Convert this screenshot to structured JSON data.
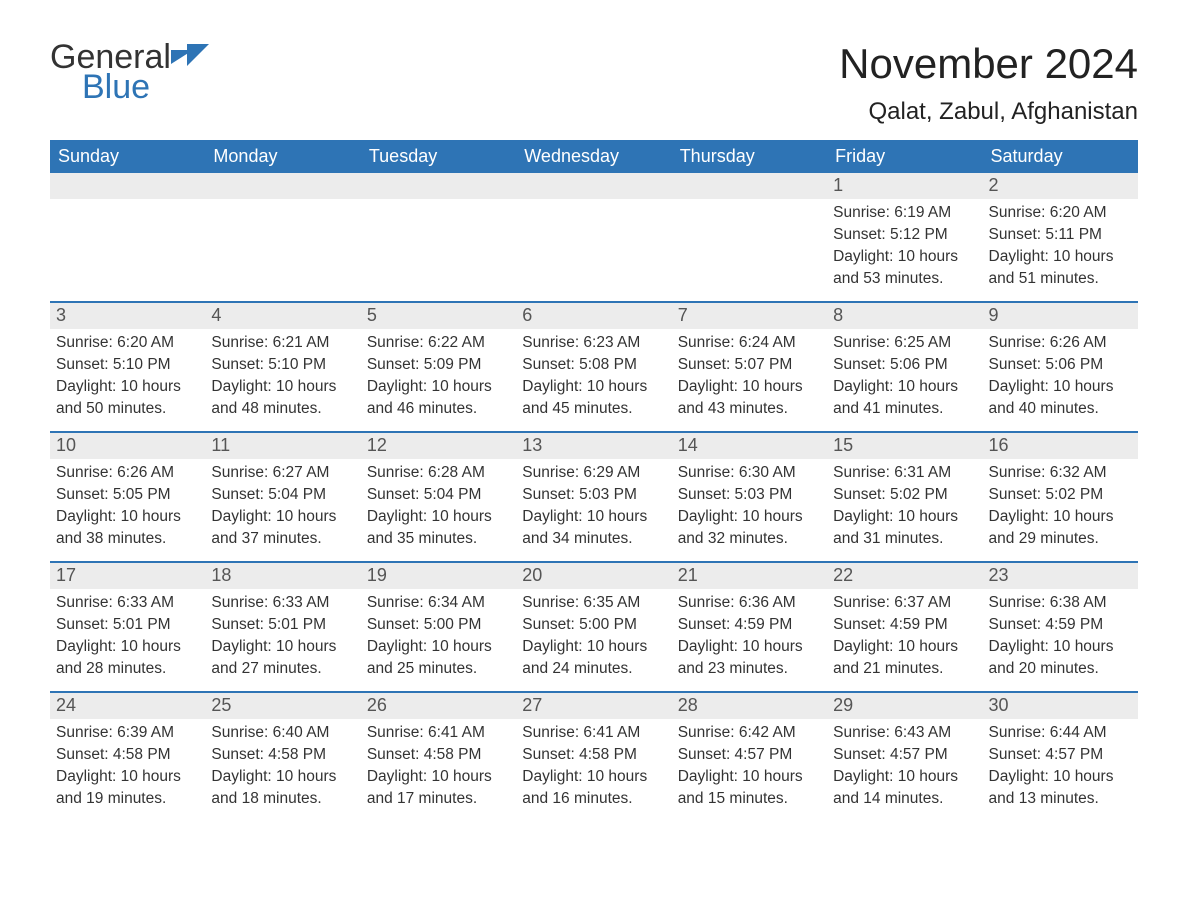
{
  "logo": {
    "line1": "General",
    "line2": "Blue"
  },
  "header": {
    "month_title": "November 2024",
    "location": "Qalat, Zabul, Afghanistan"
  },
  "styling": {
    "header_bg": "#2e74b5",
    "header_text": "#ffffff",
    "day_number_bg": "#ececec",
    "day_number_color": "#555555",
    "border_color": "#2e74b5",
    "body_text_color": "#333333",
    "background_color": "#ffffff",
    "logo_blue": "#2e74b5",
    "month_title_fontsize": 42,
    "location_fontsize": 24,
    "weekday_fontsize": 18,
    "day_number_fontsize": 18,
    "day_content_fontsize": 15.5
  },
  "weekdays": [
    "Sunday",
    "Monday",
    "Tuesday",
    "Wednesday",
    "Thursday",
    "Friday",
    "Saturday"
  ],
  "weeks": [
    [
      {
        "day": "",
        "sunrise": "",
        "sunset": "",
        "daylight1": "",
        "daylight2": ""
      },
      {
        "day": "",
        "sunrise": "",
        "sunset": "",
        "daylight1": "",
        "daylight2": ""
      },
      {
        "day": "",
        "sunrise": "",
        "sunset": "",
        "daylight1": "",
        "daylight2": ""
      },
      {
        "day": "",
        "sunrise": "",
        "sunset": "",
        "daylight1": "",
        "daylight2": ""
      },
      {
        "day": "",
        "sunrise": "",
        "sunset": "",
        "daylight1": "",
        "daylight2": ""
      },
      {
        "day": "1",
        "sunrise": "Sunrise: 6:19 AM",
        "sunset": "Sunset: 5:12 PM",
        "daylight1": "Daylight: 10 hours",
        "daylight2": "and 53 minutes."
      },
      {
        "day": "2",
        "sunrise": "Sunrise: 6:20 AM",
        "sunset": "Sunset: 5:11 PM",
        "daylight1": "Daylight: 10 hours",
        "daylight2": "and 51 minutes."
      }
    ],
    [
      {
        "day": "3",
        "sunrise": "Sunrise: 6:20 AM",
        "sunset": "Sunset: 5:10 PM",
        "daylight1": "Daylight: 10 hours",
        "daylight2": "and 50 minutes."
      },
      {
        "day": "4",
        "sunrise": "Sunrise: 6:21 AM",
        "sunset": "Sunset: 5:10 PM",
        "daylight1": "Daylight: 10 hours",
        "daylight2": "and 48 minutes."
      },
      {
        "day": "5",
        "sunrise": "Sunrise: 6:22 AM",
        "sunset": "Sunset: 5:09 PM",
        "daylight1": "Daylight: 10 hours",
        "daylight2": "and 46 minutes."
      },
      {
        "day": "6",
        "sunrise": "Sunrise: 6:23 AM",
        "sunset": "Sunset: 5:08 PM",
        "daylight1": "Daylight: 10 hours",
        "daylight2": "and 45 minutes."
      },
      {
        "day": "7",
        "sunrise": "Sunrise: 6:24 AM",
        "sunset": "Sunset: 5:07 PM",
        "daylight1": "Daylight: 10 hours",
        "daylight2": "and 43 minutes."
      },
      {
        "day": "8",
        "sunrise": "Sunrise: 6:25 AM",
        "sunset": "Sunset: 5:06 PM",
        "daylight1": "Daylight: 10 hours",
        "daylight2": "and 41 minutes."
      },
      {
        "day": "9",
        "sunrise": "Sunrise: 6:26 AM",
        "sunset": "Sunset: 5:06 PM",
        "daylight1": "Daylight: 10 hours",
        "daylight2": "and 40 minutes."
      }
    ],
    [
      {
        "day": "10",
        "sunrise": "Sunrise: 6:26 AM",
        "sunset": "Sunset: 5:05 PM",
        "daylight1": "Daylight: 10 hours",
        "daylight2": "and 38 minutes."
      },
      {
        "day": "11",
        "sunrise": "Sunrise: 6:27 AM",
        "sunset": "Sunset: 5:04 PM",
        "daylight1": "Daylight: 10 hours",
        "daylight2": "and 37 minutes."
      },
      {
        "day": "12",
        "sunrise": "Sunrise: 6:28 AM",
        "sunset": "Sunset: 5:04 PM",
        "daylight1": "Daylight: 10 hours",
        "daylight2": "and 35 minutes."
      },
      {
        "day": "13",
        "sunrise": "Sunrise: 6:29 AM",
        "sunset": "Sunset: 5:03 PM",
        "daylight1": "Daylight: 10 hours",
        "daylight2": "and 34 minutes."
      },
      {
        "day": "14",
        "sunrise": "Sunrise: 6:30 AM",
        "sunset": "Sunset: 5:03 PM",
        "daylight1": "Daylight: 10 hours",
        "daylight2": "and 32 minutes."
      },
      {
        "day": "15",
        "sunrise": "Sunrise: 6:31 AM",
        "sunset": "Sunset: 5:02 PM",
        "daylight1": "Daylight: 10 hours",
        "daylight2": "and 31 minutes."
      },
      {
        "day": "16",
        "sunrise": "Sunrise: 6:32 AM",
        "sunset": "Sunset: 5:02 PM",
        "daylight1": "Daylight: 10 hours",
        "daylight2": "and 29 minutes."
      }
    ],
    [
      {
        "day": "17",
        "sunrise": "Sunrise: 6:33 AM",
        "sunset": "Sunset: 5:01 PM",
        "daylight1": "Daylight: 10 hours",
        "daylight2": "and 28 minutes."
      },
      {
        "day": "18",
        "sunrise": "Sunrise: 6:33 AM",
        "sunset": "Sunset: 5:01 PM",
        "daylight1": "Daylight: 10 hours",
        "daylight2": "and 27 minutes."
      },
      {
        "day": "19",
        "sunrise": "Sunrise: 6:34 AM",
        "sunset": "Sunset: 5:00 PM",
        "daylight1": "Daylight: 10 hours",
        "daylight2": "and 25 minutes."
      },
      {
        "day": "20",
        "sunrise": "Sunrise: 6:35 AM",
        "sunset": "Sunset: 5:00 PM",
        "daylight1": "Daylight: 10 hours",
        "daylight2": "and 24 minutes."
      },
      {
        "day": "21",
        "sunrise": "Sunrise: 6:36 AM",
        "sunset": "Sunset: 4:59 PM",
        "daylight1": "Daylight: 10 hours",
        "daylight2": "and 23 minutes."
      },
      {
        "day": "22",
        "sunrise": "Sunrise: 6:37 AM",
        "sunset": "Sunset: 4:59 PM",
        "daylight1": "Daylight: 10 hours",
        "daylight2": "and 21 minutes."
      },
      {
        "day": "23",
        "sunrise": "Sunrise: 6:38 AM",
        "sunset": "Sunset: 4:59 PM",
        "daylight1": "Daylight: 10 hours",
        "daylight2": "and 20 minutes."
      }
    ],
    [
      {
        "day": "24",
        "sunrise": "Sunrise: 6:39 AM",
        "sunset": "Sunset: 4:58 PM",
        "daylight1": "Daylight: 10 hours",
        "daylight2": "and 19 minutes."
      },
      {
        "day": "25",
        "sunrise": "Sunrise: 6:40 AM",
        "sunset": "Sunset: 4:58 PM",
        "daylight1": "Daylight: 10 hours",
        "daylight2": "and 18 minutes."
      },
      {
        "day": "26",
        "sunrise": "Sunrise: 6:41 AM",
        "sunset": "Sunset: 4:58 PM",
        "daylight1": "Daylight: 10 hours",
        "daylight2": "and 17 minutes."
      },
      {
        "day": "27",
        "sunrise": "Sunrise: 6:41 AM",
        "sunset": "Sunset: 4:58 PM",
        "daylight1": "Daylight: 10 hours",
        "daylight2": "and 16 minutes."
      },
      {
        "day": "28",
        "sunrise": "Sunrise: 6:42 AM",
        "sunset": "Sunset: 4:57 PM",
        "daylight1": "Daylight: 10 hours",
        "daylight2": "and 15 minutes."
      },
      {
        "day": "29",
        "sunrise": "Sunrise: 6:43 AM",
        "sunset": "Sunset: 4:57 PM",
        "daylight1": "Daylight: 10 hours",
        "daylight2": "and 14 minutes."
      },
      {
        "day": "30",
        "sunrise": "Sunrise: 6:44 AM",
        "sunset": "Sunset: 4:57 PM",
        "daylight1": "Daylight: 10 hours",
        "daylight2": "and 13 minutes."
      }
    ]
  ]
}
